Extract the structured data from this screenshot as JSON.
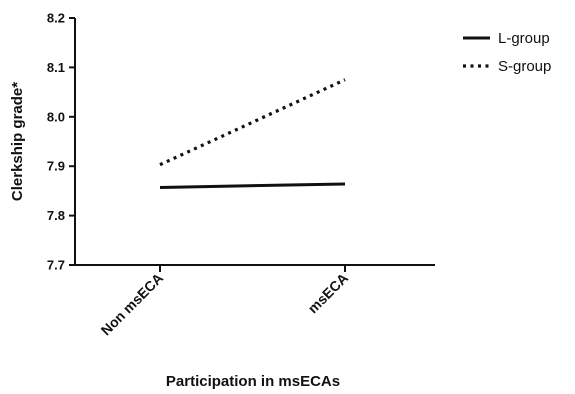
{
  "chart_data": {
    "type": "line",
    "title": "",
    "xlabel": "Participation in msECAs",
    "ylabel": "Clerkship grade*",
    "categories": [
      "Non msECA",
      "msECA"
    ],
    "ylim": [
      7.7,
      8.2
    ],
    "yticks": [
      "7.7",
      "7.8",
      "7.9",
      "8.0",
      "8.1",
      "8.2"
    ],
    "grid": false,
    "legend_position": "top-right",
    "series": [
      {
        "name": "L-group",
        "values": [
          7.857,
          7.864
        ],
        "line_style": "solid",
        "color": "#111111"
      },
      {
        "name": "S-group",
        "values": [
          7.903,
          8.075
        ],
        "line_style": "dotted",
        "color": "#111111"
      }
    ]
  }
}
